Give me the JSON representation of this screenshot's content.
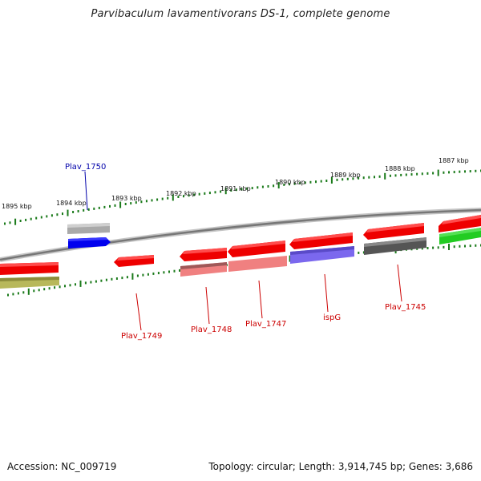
{
  "title": "Parvibaculum lavamentivorans DS-1, complete genome",
  "footer": {
    "accession": "Accession: NC_009719",
    "topology": "Topology: circular; Length: 3,914,745 bp; Genes: 3,686"
  },
  "colors": {
    "backbone": "#8a8a8a",
    "ticks": "#1a7a1a",
    "label_blue": "#0000aa",
    "label_red": "#cc0000"
  },
  "kbp_labels": [
    "1895 kbp",
    "1894 kbp",
    "1893 kbp",
    "1892 kbp",
    "1891 kbp",
    "1890 kbp",
    "1889 kbp",
    "1888 kbp",
    "1887 kbp"
  ],
  "genes": [
    {
      "name": "Plav_1750",
      "strand": "plus",
      "color": "#0000ee",
      "labelColor": "#0000aa"
    },
    {
      "name": "Plav_1749",
      "strand": "minus",
      "color": "#ee0000",
      "labelColor": "#cc0000"
    },
    {
      "name": "Plav_1748",
      "strand": "minus",
      "color": "#ee0000",
      "labelColor": "#cc0000"
    },
    {
      "name": "Plav_1747",
      "strand": "minus",
      "color": "#ee0000",
      "labelColor": "#cc0000"
    },
    {
      "name": "ispG",
      "strand": "minus",
      "color": "#ee0000",
      "labelColor": "#cc0000"
    },
    {
      "name": "Plav_1745",
      "strand": "minus",
      "color": "#ee0000",
      "labelColor": "#cc0000"
    }
  ]
}
